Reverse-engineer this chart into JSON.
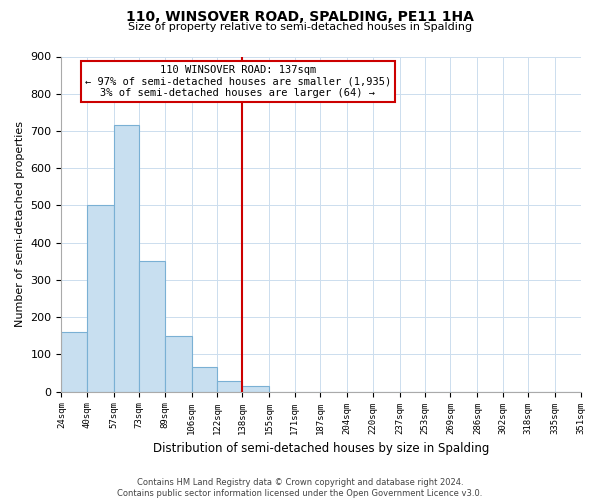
{
  "title": "110, WINSOVER ROAD, SPALDING, PE11 1HA",
  "subtitle": "Size of property relative to semi-detached houses in Spalding",
  "xlabel": "Distribution of semi-detached houses by size in Spalding",
  "ylabel": "Number of semi-detached properties",
  "bar_edges": [
    24,
    40,
    57,
    73,
    89,
    106,
    122,
    138,
    155,
    171,
    187,
    204,
    220,
    237,
    253,
    269,
    286,
    302,
    318,
    335,
    351
  ],
  "bar_heights": [
    160,
    500,
    715,
    350,
    150,
    65,
    30,
    15,
    0,
    0,
    0,
    0,
    0,
    0,
    0,
    0,
    0,
    0,
    0,
    0
  ],
  "bar_color": "#c8dff0",
  "bar_edgecolor": "#7ab0d4",
  "vline_x": 138,
  "vline_color": "#cc0000",
  "annotation_title": "110 WINSOVER ROAD: 137sqm",
  "annotation_line1": "← 97% of semi-detached houses are smaller (1,935)",
  "annotation_line2": "3% of semi-detached houses are larger (64) →",
  "annotation_box_edgecolor": "#cc0000",
  "ylim": [
    0,
    900
  ],
  "yticks": [
    0,
    100,
    200,
    300,
    400,
    500,
    600,
    700,
    800,
    900
  ],
  "tick_labels": [
    "24sqm",
    "40sqm",
    "57sqm",
    "73sqm",
    "89sqm",
    "106sqm",
    "122sqm",
    "138sqm",
    "155sqm",
    "171sqm",
    "187sqm",
    "204sqm",
    "220sqm",
    "237sqm",
    "253sqm",
    "269sqm",
    "286sqm",
    "302sqm",
    "318sqm",
    "335sqm",
    "351sqm"
  ],
  "footer_line1": "Contains HM Land Registry data © Crown copyright and database right 2024.",
  "footer_line2": "Contains public sector information licensed under the Open Government Licence v3.0.",
  "background_color": "#ffffff",
  "grid_color": "#ccddee"
}
